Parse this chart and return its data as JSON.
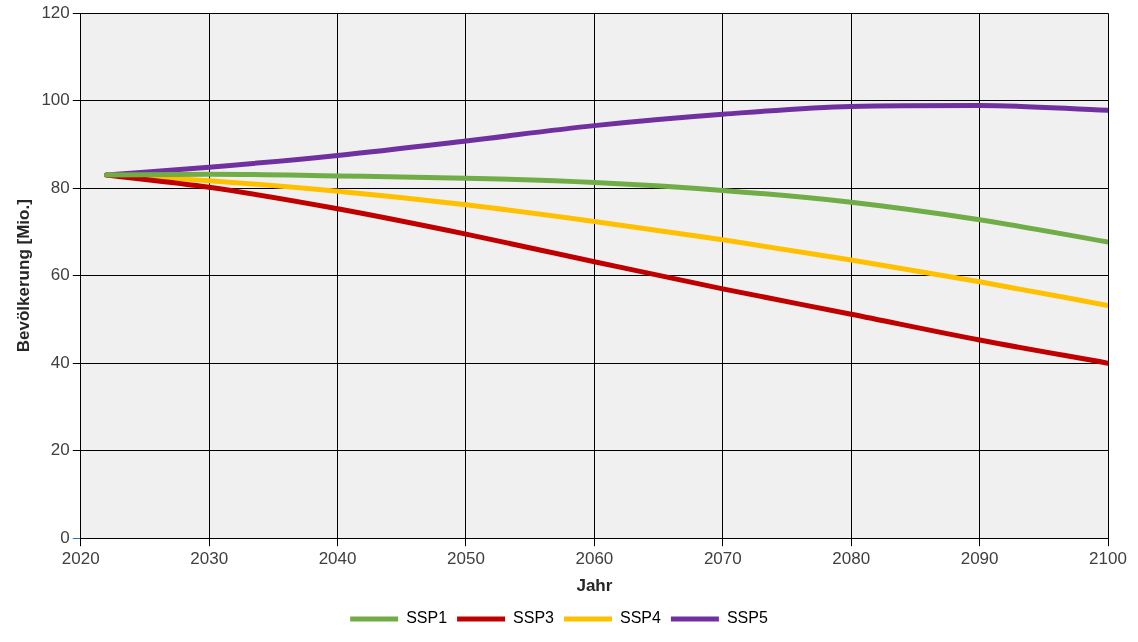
{
  "chart_data": {
    "type": "line",
    "xlabel": "Jahr",
    "ylabel": "Bevölkerung [Mio.]",
    "x": [
      2022,
      2030,
      2040,
      2050,
      2060,
      2070,
      2080,
      2090,
      2100
    ],
    "series": [
      {
        "name": "SSP1",
        "color": "#70ad47",
        "values": [
          83,
          83.2,
          82.8,
          82.3,
          81.3,
          79.5,
          76.8,
          72.8,
          67.7
        ]
      },
      {
        "name": "SSP3",
        "color": "#c00000",
        "values": [
          83,
          80.2,
          75.3,
          69.5,
          63.2,
          57,
          51.2,
          45.3,
          40
        ]
      },
      {
        "name": "SSP4",
        "color": "#ffc000",
        "values": [
          83,
          81.7,
          79.3,
          76.2,
          72.4,
          68.2,
          63.6,
          58.6,
          53.2
        ]
      },
      {
        "name": "SSP5",
        "color": "#7030a0",
        "values": [
          83,
          84.8,
          87.5,
          90.8,
          94.3,
          96.9,
          98.7,
          98.9,
          97.8
        ]
      }
    ],
    "xlim": [
      2020,
      2100
    ],
    "xticks": [
      2020,
      2030,
      2040,
      2050,
      2060,
      2070,
      2080,
      2090,
      2100
    ],
    "ylim": [
      0,
      120
    ],
    "yticks": [
      0,
      20,
      40,
      60,
      80,
      100,
      120
    ],
    "grid": true,
    "legend": "bottom",
    "marker": "none",
    "line_style": "solid"
  }
}
